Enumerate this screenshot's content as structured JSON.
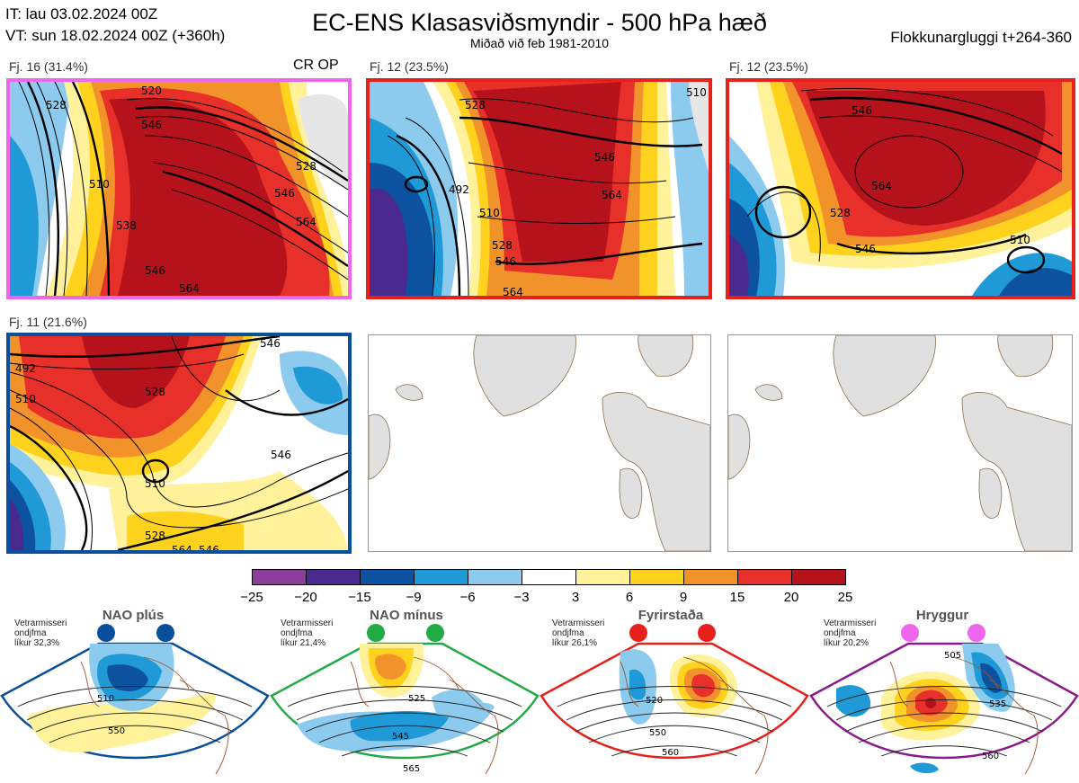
{
  "header": {
    "it_line": "IT: lau 03.02.2024 00Z",
    "vt_line": "VT: sun 18.02.2024 00Z  (+360h)",
    "title": "EC-ENS Klasasviðsmyndir - 500 hPa hæð",
    "subtitle": "Miðað við feb 1981-2010",
    "window": "Flokkunargluggi t+264-360"
  },
  "clusters": [
    {
      "label": "Fj. 16 (31.4%)",
      "tag": "CR OP",
      "border": "#ee66ee",
      "contours": [
        "520",
        "528",
        "546",
        "510",
        "528",
        "546",
        "564",
        "538",
        "546",
        "564"
      ]
    },
    {
      "label": "Fj. 12 (23.5%)",
      "border": "#e8201c",
      "contours": [
        "528",
        "546",
        "564",
        "492",
        "510",
        "528",
        "546",
        "564",
        "510"
      ]
    },
    {
      "label": "Fj. 12 (23.5%)",
      "border": "#e8201c",
      "contours": [
        "546",
        "564",
        "528",
        "546",
        "510"
      ]
    },
    {
      "label": "Fj. 11 (21.6%)",
      "border": "#0a4f9c",
      "contours": [
        "492",
        "510",
        "528",
        "510",
        "546",
        "528",
        "546",
        "564",
        "546"
      ]
    }
  ],
  "colorbar": {
    "ticks": [
      "−25",
      "−20",
      "−15",
      "−9",
      "−6",
      "−3",
      "3",
      "6",
      "9",
      "15",
      "20",
      "25"
    ],
    "colors": [
      "#8b3e9a",
      "#4b2a8f",
      "#0d52a0",
      "#1f9ad6",
      "#8ccbee",
      "#ffffff",
      "#fff29a",
      "#ffd21e",
      "#f2922a",
      "#e8302a",
      "#b5121b"
    ]
  },
  "regimes": [
    {
      "name": "NAO plús",
      "color": "#0a4f9c",
      "info": [
        "Vetrarmisseri",
        "ondjfma",
        "líkur 32,3%"
      ],
      "contours": [
        "510",
        "550"
      ]
    },
    {
      "name": "NAO mínus",
      "color": "#22aa44",
      "info": [
        "Vetrarmisseri",
        "ondjfma",
        "líkur 21,4%"
      ],
      "contours": [
        "525",
        "545",
        "565"
      ]
    },
    {
      "name": "Fyrirstaða",
      "color": "#e8201c",
      "info": [
        "Vetrarmisseri",
        "ondjfma",
        "líkur 26,1%"
      ],
      "contours": [
        "520",
        "550",
        "560"
      ]
    },
    {
      "name": "Hryggur",
      "color": "#ee66ee",
      "info": [
        "Vetrarmisseri",
        "ondjfma",
        "líkur 20,2%"
      ],
      "contours": [
        "505",
        "535",
        "560"
      ]
    }
  ]
}
